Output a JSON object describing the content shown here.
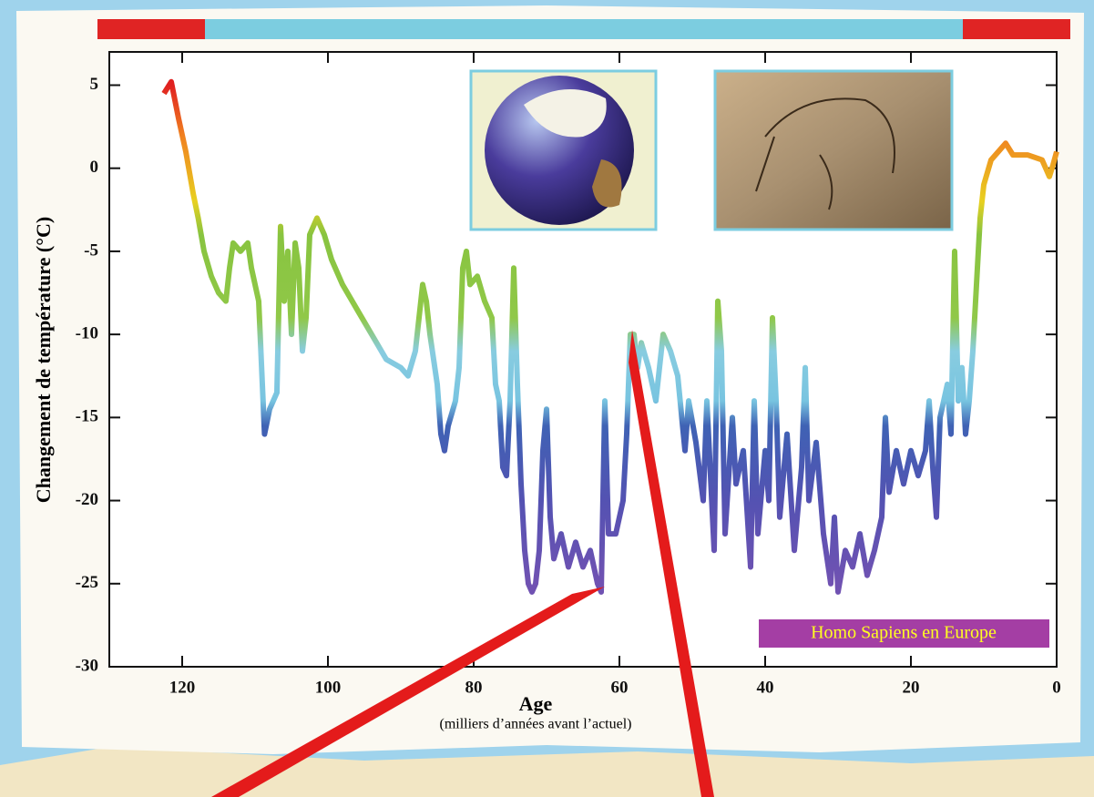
{
  "chart_data": {
    "type": "line",
    "xlabel": "Age",
    "xlabel_sub": "(milliers d’années avant l’actuel)",
    "ylabel": "Changement de température (°C)",
    "annotation": "Homo Sapiens en Europe",
    "xlim": [
      130,
      0
    ],
    "ylim": [
      -30,
      7
    ],
    "xticks": [
      120,
      100,
      80,
      60,
      40,
      20,
      0
    ],
    "yticks": [
      5,
      0,
      -5,
      -10,
      -15,
      -20,
      -25,
      -30
    ],
    "color_scale": [
      {
        "value": 5,
        "color": "#e02020"
      },
      {
        "value": 2,
        "color": "#f08020"
      },
      {
        "value": -2,
        "color": "#e8d020"
      },
      {
        "value": -4,
        "color": "#88c440"
      },
      {
        "value": -9,
        "color": "#90c848"
      },
      {
        "value": -11,
        "color": "#88cce0"
      },
      {
        "value": -14,
        "color": "#78c4e0"
      },
      {
        "value": -15.5,
        "color": "#3f62b4"
      },
      {
        "value": -20,
        "color": "#5452b2"
      },
      {
        "value": -25,
        "color": "#7052b2"
      }
    ],
    "x": [
      122.5,
      121.5,
      120.5,
      119.5,
      118.5,
      117.8,
      117,
      116,
      115,
      114,
      113.5,
      113,
      112,
      111,
      110.5,
      109.5,
      109,
      108.7,
      108,
      107,
      106.5,
      106,
      105.5,
      105,
      104.5,
      104,
      103.5,
      103,
      102.5,
      101.5,
      100.5,
      99.5,
      98,
      96,
      94,
      92,
      90,
      89,
      88,
      87.5,
      87,
      86.5,
      86,
      85,
      84.5,
      84,
      83.5,
      82.5,
      82,
      81.5,
      81,
      80.5,
      79.5,
      78.5,
      77.5,
      77,
      76.5,
      76,
      75.5,
      75,
      74.5,
      74,
      73.5,
      73,
      72.5,
      72,
      71.5,
      71,
      70.5,
      70,
      69.5,
      69,
      68,
      67,
      66,
      65,
      64,
      63,
      62.5,
      62,
      61.5,
      60.5,
      59.5,
      59,
      58.5,
      58,
      57.5,
      57,
      56,
      55,
      54.5,
      54,
      53,
      52,
      51,
      50.5,
      49.5,
      48.5,
      48,
      47,
      46.5,
      46,
      45.5,
      44.5,
      44,
      43,
      42,
      41.5,
      41,
      40,
      39.5,
      39,
      38.5,
      38,
      37,
      36,
      35,
      34.5,
      34,
      33,
      32,
      31,
      30.5,
      30,
      29,
      28,
      27,
      26,
      25,
      24,
      23.5,
      23,
      22,
      21,
      20,
      19,
      18,
      17.5,
      17,
      16.5,
      16,
      15,
      14.5,
      14,
      13.5,
      13,
      12.5,
      12,
      11.5,
      11,
      10.5,
      10,
      9,
      8,
      7,
      6,
      4,
      2,
      1,
      0.5,
      0
    ],
    "values": [
      4.5,
      5.2,
      3,
      1,
      -1.5,
      -3,
      -5,
      -6.5,
      -7.5,
      -8,
      -6,
      -4.5,
      -5,
      -4.5,
      -6,
      -8,
      -13,
      -16,
      -14.5,
      -13.5,
      -3.5,
      -8,
      -5,
      -10,
      -4.5,
      -6,
      -11,
      -9,
      -4,
      -3,
      -4,
      -5.5,
      -7,
      -8.5,
      -10,
      -11.5,
      -12,
      -12.5,
      -11,
      -9,
      -7,
      -8,
      -10,
      -13,
      -16,
      -17,
      -15.5,
      -14,
      -12,
      -6,
      -5,
      -7,
      -6.5,
      -8,
      -9,
      -13,
      -14,
      -18,
      -18.5,
      -14,
      -6,
      -13,
      -19,
      -23,
      -25,
      -25.5,
      -25,
      -23,
      -17,
      -14.5,
      -21,
      -23.5,
      -22,
      -24,
      -22.5,
      -24,
      -23,
      -25,
      -25.5,
      -14,
      -22,
      -22,
      -20,
      -16,
      -10,
      -10,
      -12,
      -10.5,
      -12,
      -14,
      -12,
      -10,
      -11,
      -12.5,
      -17,
      -14,
      -16.5,
      -20,
      -14,
      -23,
      -8,
      -11,
      -22,
      -15,
      -19,
      -17,
      -24,
      -14,
      -22,
      -17,
      -20,
      -9,
      -14,
      -21,
      -16,
      -23,
      -18,
      -12,
      -20,
      -16.5,
      -22,
      -25,
      -21,
      -25.5,
      -23,
      -24,
      -22,
      -24.5,
      -23,
      -21,
      -15,
      -19.5,
      -17,
      -19,
      -17,
      -18.5,
      -17,
      -14,
      -18,
      -21,
      -15,
      -13,
      -16,
      -5,
      -14,
      -12,
      -16,
      -14,
      -11,
      -7,
      -3,
      -1,
      0.5,
      1,
      1.5,
      0.8,
      0.8,
      0.5,
      -0.5,
      0.2,
      1
    ]
  }
}
